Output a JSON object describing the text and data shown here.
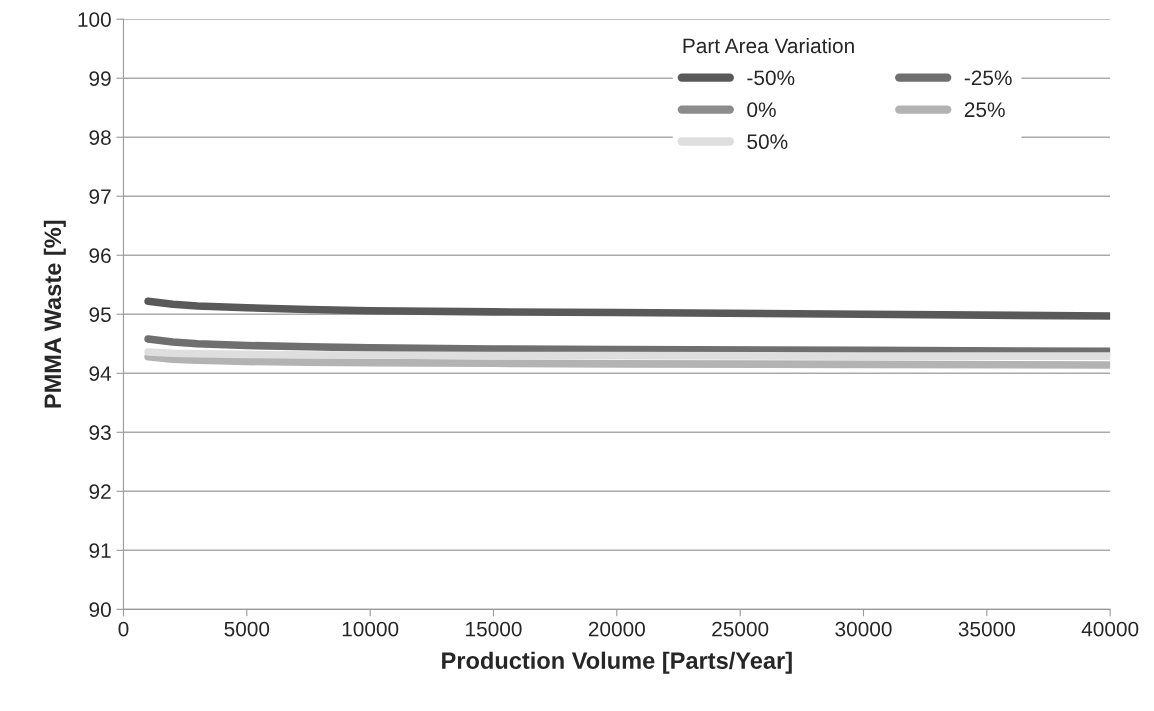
{
  "chart_data": {
    "type": "line",
    "xlabel": "Production Volume [Parts/Year]",
    "ylabel": "PMMA Waste [%]",
    "legend_title": "Part Area Variation",
    "x": [
      1000,
      2000,
      3000,
      5000,
      7500,
      10000,
      15000,
      20000,
      30000,
      40000
    ],
    "series": [
      {
        "name": "-50%",
        "color": "#595959",
        "values": [
          95.22,
          95.17,
          95.14,
          95.11,
          95.08,
          95.06,
          95.04,
          95.03,
          95.0,
          94.97
        ]
      },
      {
        "name": "-25%",
        "color": "#6f6f6f",
        "values": [
          94.58,
          94.53,
          94.5,
          94.47,
          94.45,
          94.43,
          94.41,
          94.4,
          94.39,
          94.37
        ]
      },
      {
        "name": "0%",
        "color": "#8c8c8c",
        "values": [
          null,
          null,
          null,
          null,
          null,
          null,
          null,
          null,
          null,
          null
        ]
      },
      {
        "name": "25%",
        "color": "#b3b3b3",
        "values": [
          94.28,
          94.24,
          94.22,
          94.2,
          94.19,
          94.18,
          94.17,
          94.16,
          94.15,
          94.14
        ]
      },
      {
        "name": "50%",
        "color": "#dedede",
        "values": [
          94.36,
          94.34,
          94.33,
          94.32,
          94.31,
          94.31,
          94.3,
          94.3,
          94.29,
          94.29
        ]
      }
    ],
    "xlim": [
      0,
      40000
    ],
    "xticks": [
      0,
      5000,
      10000,
      15000,
      20000,
      25000,
      30000,
      35000,
      40000
    ],
    "ylim": [
      90,
      100
    ],
    "yticks": [
      90,
      91,
      92,
      93,
      94,
      95,
      96,
      97,
      98,
      99,
      100
    ],
    "grid": "y",
    "legend": "top right",
    "marker": "none",
    "line_style": "solid"
  }
}
